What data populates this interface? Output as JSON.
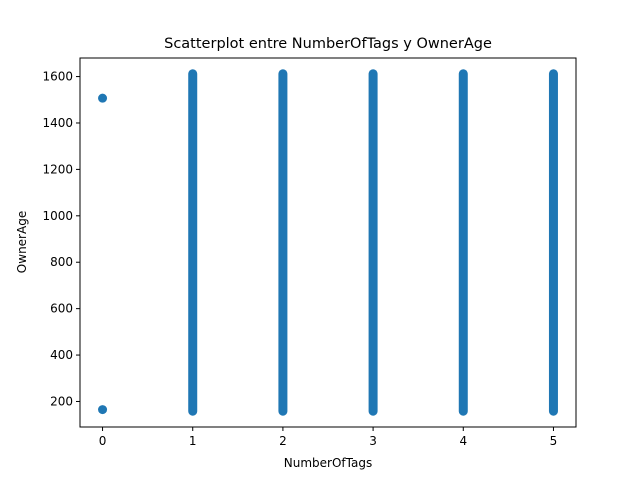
{
  "chart_data": {
    "type": "scatter",
    "title": "Scatterplot entre NumberOfTags y OwnerAge",
    "xlabel": "NumberOfTags",
    "ylabel": "OwnerAge",
    "xlim": [
      -0.25,
      5.25
    ],
    "ylim": [
      90,
      1680
    ],
    "x_ticks": [
      0,
      1,
      2,
      3,
      4,
      5
    ],
    "y_ticks": [
      200,
      400,
      600,
      800,
      1000,
      1200,
      1400,
      1600
    ],
    "marker_color": "#1f77b4",
    "grid": false,
    "series": [
      {
        "points": [
          [
            0,
            1507
          ],
          [
            0,
            165
          ]
        ],
        "ranges": [
          {
            "x": 1,
            "y_min": 158,
            "y_max": 1612
          },
          {
            "x": 2,
            "y_min": 158,
            "y_max": 1612
          },
          {
            "x": 3,
            "y_min": 158,
            "y_max": 1612
          },
          {
            "x": 4,
            "y_min": 158,
            "y_max": 1612
          },
          {
            "x": 5,
            "y_min": 158,
            "y_max": 1612
          }
        ]
      }
    ]
  }
}
